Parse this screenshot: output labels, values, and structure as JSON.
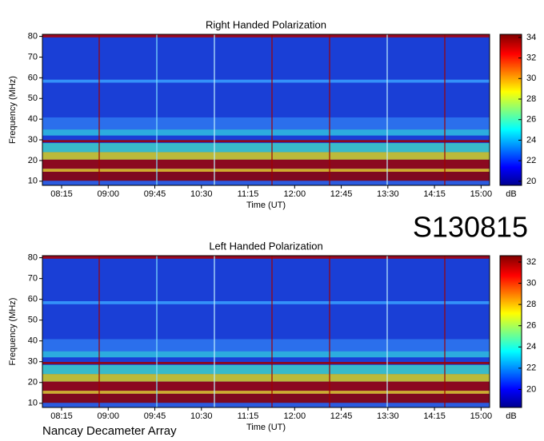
{
  "chart_data": [
    {
      "type": "spectrogram",
      "title": "Right Handed Polarization",
      "xlabel": "Time (UT)",
      "ylabel": "Frequency (MHz)",
      "xticks": [
        "08:15",
        "09:00",
        "09:45",
        "10:30",
        "11:15",
        "12:00",
        "12:45",
        "13:30",
        "14:15",
        "15:00"
      ],
      "ylim": [
        8,
        81
      ],
      "yticks": [
        10,
        20,
        30,
        40,
        50,
        60,
        70,
        80
      ],
      "colorbar_label": "dB",
      "clim": [
        19.6,
        34.3
      ],
      "cticks": [
        20,
        22,
        24,
        26,
        28,
        30,
        32,
        34
      ]
    },
    {
      "type": "spectrogram",
      "title": "Left Handed Polarization",
      "xlabel": "Time (UT)",
      "ylabel": "Frequency (MHz)",
      "xticks": [
        "08:15",
        "09:00",
        "09:45",
        "10:30",
        "11:15",
        "12:00",
        "12:45",
        "13:30",
        "14:15",
        "15:00"
      ],
      "ylim": [
        8,
        81
      ],
      "yticks": [
        10,
        20,
        30,
        40,
        50,
        60,
        70,
        80
      ],
      "colorbar_label": "dB",
      "clim": [
        18.3,
        32.6
      ],
      "cticks": [
        20,
        22,
        24,
        26,
        28,
        30,
        32
      ]
    }
  ],
  "header": {
    "label": "S130815"
  },
  "footer": {
    "label": "Nancay Decameter Array"
  }
}
